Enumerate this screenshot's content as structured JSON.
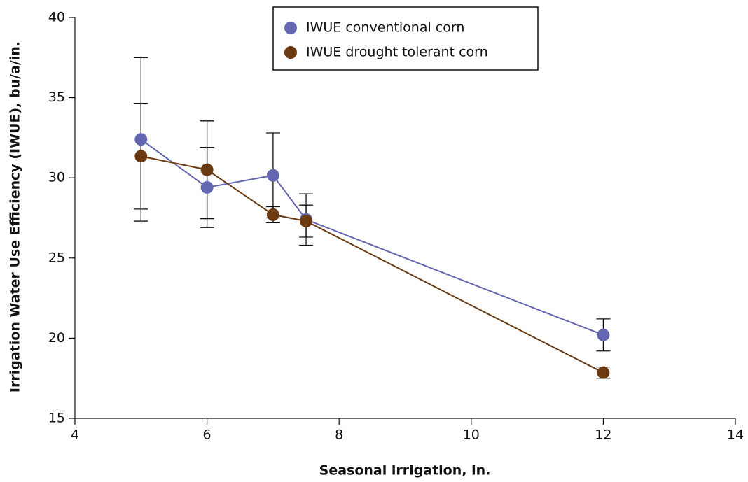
{
  "chart_data": {
    "type": "line",
    "x_label": "Seasonal irrigation, in.",
    "y_label": "Irrigation Water Use Efficiency (IWUE), bu/a/in.",
    "xlim": [
      4,
      14
    ],
    "xticks": [
      4,
      6,
      8,
      10,
      12,
      14
    ],
    "ylim": [
      15,
      40
    ],
    "yticks": [
      15,
      20,
      25,
      30,
      35,
      40
    ],
    "grid": false,
    "legend": "top",
    "series": [
      {
        "name": "IWUE conventional corn",
        "color": "#6366b0",
        "x": [
          5,
          6,
          7,
          7.5,
          12
        ],
        "values": [
          32.4,
          29.4,
          30.15,
          27.4,
          20.2
        ],
        "errors": [
          5.1,
          2.5,
          2.65,
          1.6,
          1.0
        ]
      },
      {
        "name": "IWUE drought tolerant corn",
        "color": "#6b3a11",
        "x": [
          5,
          6,
          7,
          7.5,
          12
        ],
        "values": [
          31.35,
          30.5,
          27.7,
          27.3,
          17.85
        ],
        "errors": [
          3.3,
          3.05,
          0.5,
          1.0,
          0.35
        ]
      }
    ]
  }
}
